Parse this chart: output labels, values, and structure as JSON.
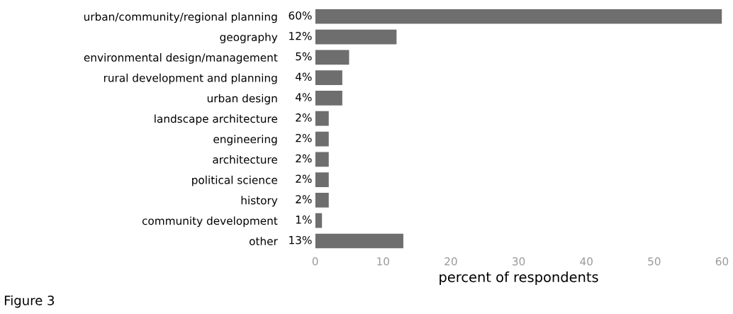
{
  "chart_data": {
    "type": "bar",
    "orientation": "horizontal",
    "categories": [
      "urban/community/regional planning",
      "geography",
      "environmental design/management",
      "rural development and planning",
      "urban design",
      "landscape architecture",
      "engineering",
      "architecture",
      "political science",
      "history",
      "community development",
      "other"
    ],
    "values": [
      60,
      12,
      5,
      4,
      4,
      2,
      2,
      2,
      2,
      2,
      1,
      13
    ],
    "value_labels": [
      "60%",
      "12%",
      "5%",
      "4%",
      "4%",
      "2%",
      "2%",
      "2%",
      "2%",
      "2%",
      "1%",
      "13%"
    ],
    "color": "#6e6e6e",
    "xlim": [
      0,
      60
    ],
    "xticks": [
      0,
      10,
      20,
      30,
      40,
      50,
      60
    ],
    "xlabel": "percent of respondents",
    "annotations": [
      "Figure 3"
    ],
    "grid": false
  }
}
